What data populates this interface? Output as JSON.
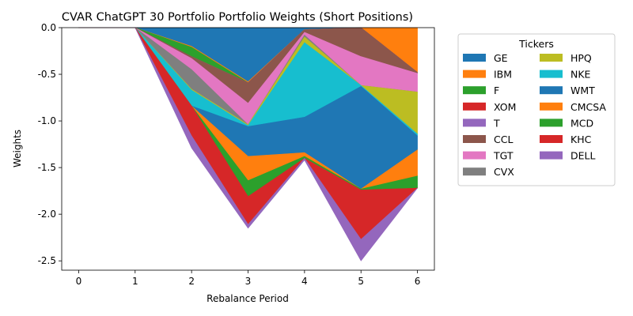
{
  "chart_data": {
    "type": "area",
    "title": "CVAR ChatGPT 30 Portfolio Portfolio Weights (Short Positions)",
    "xlabel": "Rebalance Period",
    "ylabel": "Weights",
    "x": [
      0,
      1,
      2,
      3,
      4,
      5,
      6
    ],
    "xlim": [
      -0.3,
      6.3
    ],
    "ylim": [
      -2.6,
      0.0
    ],
    "xticks": [
      "0",
      "1",
      "2",
      "3",
      "4",
      "5",
      "6"
    ],
    "yticks": [
      "0.0",
      "-0.5",
      "-1.0",
      "-1.5",
      "-2.0",
      "-2.5"
    ],
    "ytick_values": [
      0.0,
      -0.5,
      -1.0,
      -1.5,
      -2.0,
      -2.5
    ],
    "legend_title": "Tickers",
    "legend_position": "outside-right",
    "series": [
      {
        "name": "GE",
        "color": "#1f77b4",
        "values": [
          0,
          0,
          -0.2,
          -0.58,
          -0.02,
          0.0,
          0.0
        ]
      },
      {
        "name": "IBM",
        "color": "#ff7f0e",
        "values": [
          0,
          0,
          -0.01,
          -0.01,
          0.0,
          0.0,
          -0.48
        ]
      },
      {
        "name": "F",
        "color": "#2ca02c",
        "values": [
          0,
          0,
          -0.1,
          0.0,
          0.0,
          0.0,
          0.0
        ]
      },
      {
        "name": "XOM",
        "color": "#d62728",
        "values": [
          0,
          0,
          0.0,
          0.0,
          0.0,
          0.0,
          0.0
        ]
      },
      {
        "name": "T",
        "color": "#9467bd",
        "values": [
          0,
          0,
          0.0,
          0.0,
          0.0,
          0.0,
          0.0
        ]
      },
      {
        "name": "CCL",
        "color": "#8c564b",
        "values": [
          0,
          0,
          -0.02,
          -0.22,
          -0.03,
          -0.31,
          -0.01
        ]
      },
      {
        "name": "TGT",
        "color": "#e377c2",
        "values": [
          0,
          0,
          -0.12,
          -0.23,
          -0.03,
          -0.31,
          -0.2
        ]
      },
      {
        "name": "CVX",
        "color": "#7f7f7f",
        "values": [
          0,
          0,
          -0.21,
          0.0,
          -0.02,
          0.0,
          0.0
        ]
      },
      {
        "name": "HPQ",
        "color": "#bcbd22",
        "values": [
          0,
          0,
          -0.01,
          -0.01,
          -0.06,
          0.0,
          -0.45
        ]
      },
      {
        "name": "NKE",
        "color": "#17becf",
        "values": [
          0,
          0,
          -0.17,
          -0.01,
          -0.8,
          -0.01,
          -0.02
        ]
      },
      {
        "name": "WMT",
        "color": "#1f77b4",
        "values": [
          0,
          0,
          0.0,
          -0.32,
          -0.38,
          -1.1,
          -0.15
        ]
      },
      {
        "name": "CMCSA",
        "color": "#ff7f0e",
        "values": [
          0,
          0,
          0.0,
          -0.26,
          -0.04,
          0.0,
          -0.28
        ]
      },
      {
        "name": "MCD",
        "color": "#2ca02c",
        "values": [
          0,
          0,
          0.0,
          -0.17,
          -0.02,
          -0.01,
          -0.13
        ]
      },
      {
        "name": "KHC",
        "color": "#d62728",
        "values": [
          0,
          0,
          -0.32,
          -0.3,
          0.0,
          -0.53,
          0.0
        ]
      },
      {
        "name": "DELL",
        "color": "#9467bd",
        "values": [
          0,
          0,
          -0.13,
          -0.04,
          -0.02,
          -0.23,
          0.0
        ]
      }
    ]
  }
}
